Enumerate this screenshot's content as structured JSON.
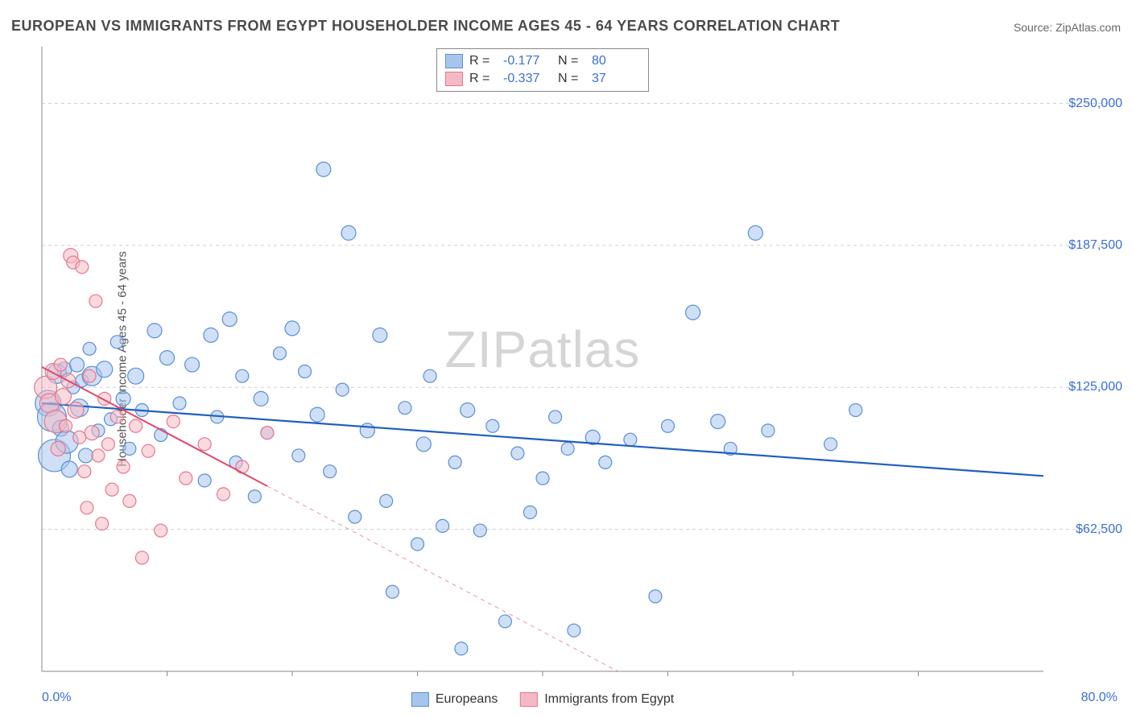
{
  "title": "EUROPEAN VS IMMIGRANTS FROM EGYPT HOUSEHOLDER INCOME AGES 45 - 64 YEARS CORRELATION CHART",
  "source": "Source: ZipAtlas.com",
  "ylabel": "Householder Income Ages 45 - 64 years",
  "watermark_a": "ZIP",
  "watermark_b": "atlas",
  "chart": {
    "type": "scatter",
    "xlim": [
      0,
      80
    ],
    "ylim": [
      0,
      275000
    ],
    "xtick_left": "0.0%",
    "xtick_right": "80.0%",
    "xtick_minor_step": 10,
    "yticks": [
      {
        "v": 62500,
        "label": "$62,500"
      },
      {
        "v": 125000,
        "label": "$125,000"
      },
      {
        "v": 187500,
        "label": "$187,500"
      },
      {
        "v": 250000,
        "label": "$250,000"
      }
    ],
    "grid_color": "#d0d0d0",
    "axis_color": "#888",
    "background": "#ffffff",
    "tick_label_color": "#3b6fd4",
    "tick_label_fontsize": 16,
    "title_fontsize": 18,
    "ylabel_fontsize": 15,
    "series": [
      {
        "name": "Europeans",
        "fill": "#a7c5ec",
        "fill_opacity": 0.55,
        "stroke": "#5a8fd6",
        "line_color": "#1f5fbf",
        "line_width": 2.2,
        "R": "-0.177",
        "N": "80",
        "trend": {
          "x1": 0,
          "y1": 118000,
          "x2": 80,
          "y2": 86000,
          "solid_until_x": 80
        },
        "points": [
          {
            "x": 0.5,
            "y": 118000,
            "r": 16
          },
          {
            "x": 0.8,
            "y": 112000,
            "r": 18
          },
          {
            "x": 1.0,
            "y": 95000,
            "r": 20
          },
          {
            "x": 1.2,
            "y": 131000,
            "r": 12
          },
          {
            "x": 1.5,
            "y": 107000,
            "r": 10
          },
          {
            "x": 1.8,
            "y": 133000,
            "r": 9
          },
          {
            "x": 2.0,
            "y": 101000,
            "r": 14
          },
          {
            "x": 2.2,
            "y": 89000,
            "r": 10
          },
          {
            "x": 2.5,
            "y": 125000,
            "r": 8
          },
          {
            "x": 2.8,
            "y": 135000,
            "r": 9
          },
          {
            "x": 3.0,
            "y": 116000,
            "r": 11
          },
          {
            "x": 3.2,
            "y": 128000,
            "r": 8
          },
          {
            "x": 3.5,
            "y": 95000,
            "r": 9
          },
          {
            "x": 3.8,
            "y": 142000,
            "r": 8
          },
          {
            "x": 4.0,
            "y": 130000,
            "r": 12
          },
          {
            "x": 4.5,
            "y": 106000,
            "r": 8
          },
          {
            "x": 5.0,
            "y": 133000,
            "r": 10
          },
          {
            "x": 5.5,
            "y": 111000,
            "r": 8
          },
          {
            "x": 6.0,
            "y": 145000,
            "r": 8
          },
          {
            "x": 6.5,
            "y": 120000,
            "r": 9
          },
          {
            "x": 7.0,
            "y": 98000,
            "r": 8
          },
          {
            "x": 7.5,
            "y": 130000,
            "r": 10
          },
          {
            "x": 8.0,
            "y": 115000,
            "r": 8
          },
          {
            "x": 9.0,
            "y": 150000,
            "r": 9
          },
          {
            "x": 9.5,
            "y": 104000,
            "r": 8
          },
          {
            "x": 10.0,
            "y": 138000,
            "r": 9
          },
          {
            "x": 11.0,
            "y": 118000,
            "r": 8
          },
          {
            "x": 12.0,
            "y": 135000,
            "r": 9
          },
          {
            "x": 13.0,
            "y": 84000,
            "r": 8
          },
          {
            "x": 13.5,
            "y": 148000,
            "r": 9
          },
          {
            "x": 14.0,
            "y": 112000,
            "r": 8
          },
          {
            "x": 15.0,
            "y": 155000,
            "r": 9
          },
          {
            "x": 15.5,
            "y": 92000,
            "r": 8
          },
          {
            "x": 16.0,
            "y": 130000,
            "r": 8
          },
          {
            "x": 17.0,
            "y": 77000,
            "r": 8
          },
          {
            "x": 17.5,
            "y": 120000,
            "r": 9
          },
          {
            "x": 18.0,
            "y": 105000,
            "r": 8
          },
          {
            "x": 19.0,
            "y": 140000,
            "r": 8
          },
          {
            "x": 20.0,
            "y": 151000,
            "r": 9
          },
          {
            "x": 20.5,
            "y": 95000,
            "r": 8
          },
          {
            "x": 21.0,
            "y": 132000,
            "r": 8
          },
          {
            "x": 22.0,
            "y": 113000,
            "r": 9
          },
          {
            "x": 22.5,
            "y": 221000,
            "r": 9
          },
          {
            "x": 23.0,
            "y": 88000,
            "r": 8
          },
          {
            "x": 24.0,
            "y": 124000,
            "r": 8
          },
          {
            "x": 24.5,
            "y": 193000,
            "r": 9
          },
          {
            "x": 25.0,
            "y": 68000,
            "r": 8
          },
          {
            "x": 26.0,
            "y": 106000,
            "r": 9
          },
          {
            "x": 27.0,
            "y": 148000,
            "r": 9
          },
          {
            "x": 27.5,
            "y": 75000,
            "r": 8
          },
          {
            "x": 28.0,
            "y": 35000,
            "r": 8
          },
          {
            "x": 29.0,
            "y": 116000,
            "r": 8
          },
          {
            "x": 30.0,
            "y": 56000,
            "r": 8
          },
          {
            "x": 30.5,
            "y": 100000,
            "r": 9
          },
          {
            "x": 31.0,
            "y": 130000,
            "r": 8
          },
          {
            "x": 32.0,
            "y": 64000,
            "r": 8
          },
          {
            "x": 33.0,
            "y": 92000,
            "r": 8
          },
          {
            "x": 33.5,
            "y": 10000,
            "r": 8
          },
          {
            "x": 34.0,
            "y": 115000,
            "r": 9
          },
          {
            "x": 35.0,
            "y": 62000,
            "r": 8
          },
          {
            "x": 36.0,
            "y": 108000,
            "r": 8
          },
          {
            "x": 37.0,
            "y": 22000,
            "r": 8
          },
          {
            "x": 38.0,
            "y": 96000,
            "r": 8
          },
          {
            "x": 39.0,
            "y": 70000,
            "r": 8
          },
          {
            "x": 40.0,
            "y": 85000,
            "r": 8
          },
          {
            "x": 41.0,
            "y": 112000,
            "r": 8
          },
          {
            "x": 42.0,
            "y": 98000,
            "r": 8
          },
          {
            "x": 42.5,
            "y": 18000,
            "r": 8
          },
          {
            "x": 44.0,
            "y": 103000,
            "r": 9
          },
          {
            "x": 45.0,
            "y": 92000,
            "r": 8
          },
          {
            "x": 47.0,
            "y": 102000,
            "r": 8
          },
          {
            "x": 49.0,
            "y": 33000,
            "r": 8
          },
          {
            "x": 50.0,
            "y": 108000,
            "r": 8
          },
          {
            "x": 52.0,
            "y": 158000,
            "r": 9
          },
          {
            "x": 54.0,
            "y": 110000,
            "r": 9
          },
          {
            "x": 55.0,
            "y": 98000,
            "r": 8
          },
          {
            "x": 57.0,
            "y": 193000,
            "r": 9
          },
          {
            "x": 58.0,
            "y": 106000,
            "r": 8
          },
          {
            "x": 63.0,
            "y": 100000,
            "r": 8
          },
          {
            "x": 65.0,
            "y": 115000,
            "r": 8
          }
        ]
      },
      {
        "name": "Immigrants from Egypt",
        "fill": "#f5b9c5",
        "fill_opacity": 0.55,
        "stroke": "#e5788f",
        "line_color": "#e04a6b",
        "line_width": 2.0,
        "R": "-0.337",
        "N": "37",
        "trend": {
          "x1": 0,
          "y1": 134000,
          "x2": 46,
          "y2": 0,
          "solid_until_x": 18
        },
        "points": [
          {
            "x": 0.3,
            "y": 125000,
            "r": 14
          },
          {
            "x": 0.6,
            "y": 118000,
            "r": 12
          },
          {
            "x": 0.9,
            "y": 132000,
            "r": 10
          },
          {
            "x": 1.1,
            "y": 110000,
            "r": 14
          },
          {
            "x": 1.3,
            "y": 98000,
            "r": 9
          },
          {
            "x": 1.5,
            "y": 135000,
            "r": 8
          },
          {
            "x": 1.7,
            "y": 121000,
            "r": 10
          },
          {
            "x": 1.9,
            "y": 108000,
            "r": 8
          },
          {
            "x": 2.1,
            "y": 128000,
            "r": 9
          },
          {
            "x": 2.3,
            "y": 183000,
            "r": 9
          },
          {
            "x": 2.5,
            "y": 180000,
            "r": 8
          },
          {
            "x": 2.7,
            "y": 115000,
            "r": 10
          },
          {
            "x": 3.0,
            "y": 103000,
            "r": 8
          },
          {
            "x": 3.2,
            "y": 178000,
            "r": 8
          },
          {
            "x": 3.4,
            "y": 88000,
            "r": 8
          },
          {
            "x": 3.6,
            "y": 72000,
            "r": 8
          },
          {
            "x": 3.8,
            "y": 130000,
            "r": 8
          },
          {
            "x": 4.0,
            "y": 105000,
            "r": 9
          },
          {
            "x": 4.3,
            "y": 163000,
            "r": 8
          },
          {
            "x": 4.5,
            "y": 95000,
            "r": 8
          },
          {
            "x": 4.8,
            "y": 65000,
            "r": 8
          },
          {
            "x": 5.0,
            "y": 120000,
            "r": 8
          },
          {
            "x": 5.3,
            "y": 100000,
            "r": 8
          },
          {
            "x": 5.6,
            "y": 80000,
            "r": 8
          },
          {
            "x": 6.0,
            "y": 112000,
            "r": 8
          },
          {
            "x": 6.5,
            "y": 90000,
            "r": 8
          },
          {
            "x": 7.0,
            "y": 75000,
            "r": 8
          },
          {
            "x": 7.5,
            "y": 108000,
            "r": 8
          },
          {
            "x": 8.0,
            "y": 50000,
            "r": 8
          },
          {
            "x": 8.5,
            "y": 97000,
            "r": 8
          },
          {
            "x": 9.5,
            "y": 62000,
            "r": 8
          },
          {
            "x": 10.5,
            "y": 110000,
            "r": 8
          },
          {
            "x": 11.5,
            "y": 85000,
            "r": 8
          },
          {
            "x": 13.0,
            "y": 100000,
            "r": 8
          },
          {
            "x": 14.5,
            "y": 78000,
            "r": 8
          },
          {
            "x": 16.0,
            "y": 90000,
            "r": 8
          },
          {
            "x": 18.0,
            "y": 105000,
            "r": 8
          }
        ]
      }
    ],
    "legend_bottom": [
      {
        "swatch_fill": "#a7c5ec",
        "swatch_stroke": "#5a8fd6",
        "label": "Europeans"
      },
      {
        "swatch_fill": "#f5b9c5",
        "swatch_stroke": "#e5788f",
        "label": "Immigrants from Egypt"
      }
    ]
  }
}
